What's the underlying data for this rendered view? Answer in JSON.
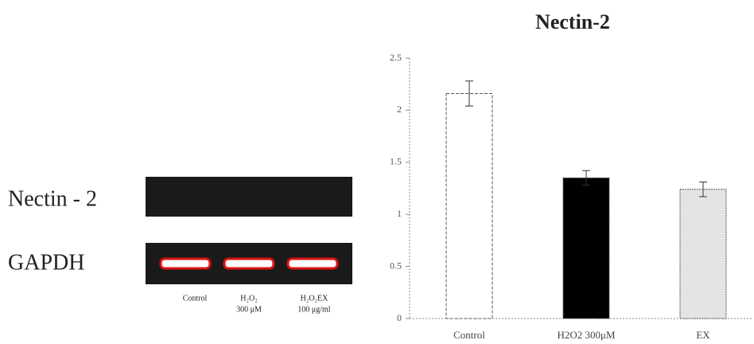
{
  "blot": {
    "rows": [
      "Nectin - 2",
      "GAPDH"
    ],
    "lanes": [
      [
        "Control"
      ],
      [
        "H₂O₂",
        "300 μM"
      ],
      [
        "H₂O₂EX",
        "100 μg/ml"
      ]
    ]
  },
  "chart_data": {
    "type": "bar",
    "title": "Nectin-2",
    "categories": [
      "Control",
      "H2O2 300μM",
      "EX"
    ],
    "values": [
      2.16,
      1.35,
      1.24
    ],
    "errors": [
      0.12,
      0.07,
      0.07
    ],
    "colors": [
      "#ffffff",
      "#000000",
      "#e4e4e4"
    ],
    "ylim": [
      0,
      2.5
    ],
    "yticks": [
      0,
      0.5,
      1,
      1.5,
      2,
      2.5
    ]
  }
}
